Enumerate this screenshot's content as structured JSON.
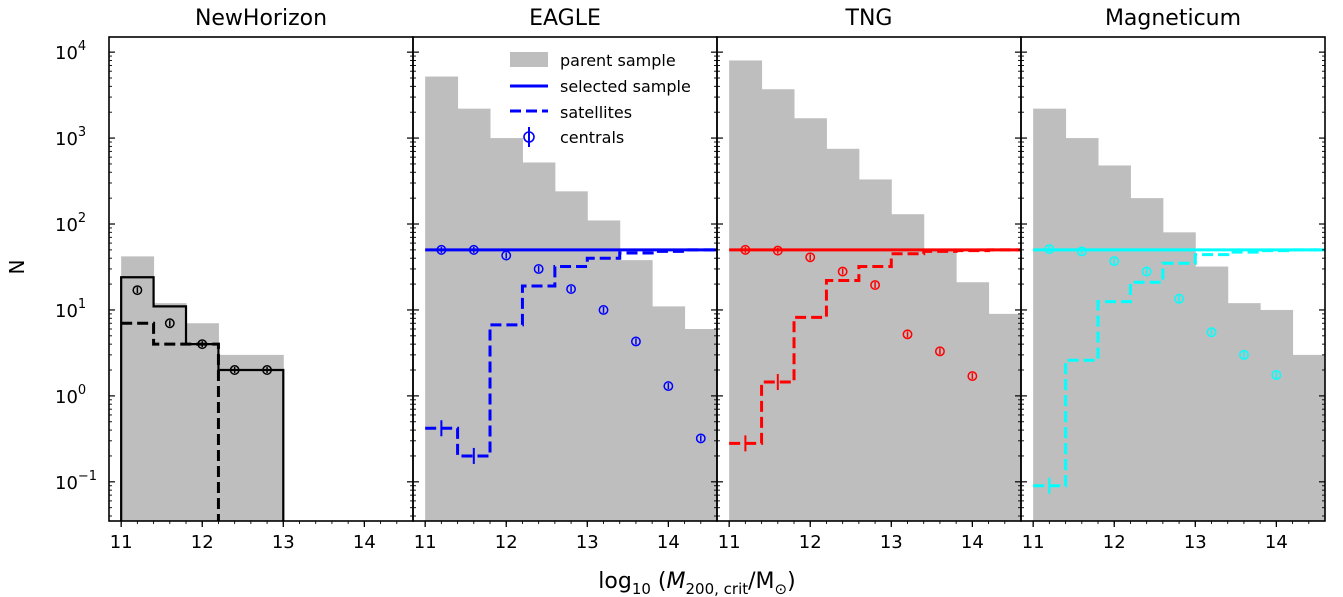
{
  "figure": {
    "ylabel": "N",
    "xlabel_prefix": "log",
    "xlabel_sub": "10",
    "xlabel_open": " (",
    "xlabel_M": "M",
    "xlabel_M_sub": "200, crit",
    "xlabel_slash": "/M",
    "xlabel_sun": "⊙",
    "xlabel_close": ")",
    "x_ticks": [
      "11",
      "12",
      "13",
      "14"
    ],
    "y_tick_exponents": [
      "4",
      "3",
      "2",
      "1",
      "0",
      "−1"
    ],
    "y_tick_base": "10"
  },
  "legend": {
    "items": [
      {
        "label": "parent sample",
        "style": "patch"
      },
      {
        "label": "selected sample",
        "style": "solid"
      },
      {
        "label": "satellites",
        "style": "dashed"
      },
      {
        "label": "centrals",
        "style": "marker"
      }
    ]
  },
  "chart_data": [
    {
      "type": "bar",
      "title": "NewHorizon",
      "color": "#000000",
      "xlim": [
        10.85,
        14.6
      ],
      "ylim": [
        0.035,
        15000
      ],
      "yscale": "log",
      "bin_edges": [
        11.0,
        11.4,
        11.8,
        12.2,
        12.6,
        13.0,
        13.4,
        13.8,
        14.2,
        14.6
      ],
      "parent_sample": [
        42,
        12,
        7,
        3,
        3,
        0,
        0,
        0,
        0
      ],
      "selected_sample": [
        24,
        11,
        4,
        2,
        2,
        0,
        0,
        0,
        0
      ],
      "satellites": [
        7,
        4,
        4,
        0,
        0,
        0,
        0,
        0,
        0
      ],
      "centrals": {
        "x": [
          11.2,
          11.6,
          12.0,
          12.4,
          12.8
        ],
        "y": [
          17,
          7,
          4,
          2,
          2
        ]
      },
      "satellite_errorbars": [],
      "grid": false
    },
    {
      "type": "bar",
      "title": "EAGLE",
      "color": "#0000ff",
      "xlim": [
        10.85,
        14.6
      ],
      "ylim": [
        0.035,
        15000
      ],
      "yscale": "log",
      "bin_edges": [
        11.0,
        11.4,
        11.8,
        12.2,
        12.6,
        13.0,
        13.4,
        13.8,
        14.2,
        14.6
      ],
      "parent_sample": [
        5200,
        2200,
        1000,
        520,
        240,
        110,
        38,
        11,
        6
      ],
      "selected_sample_level": 50,
      "satellites": [
        0.42,
        0.2,
        6.7,
        19,
        32,
        40,
        46,
        48,
        50
      ],
      "centrals": {
        "x": [
          11.2,
          11.6,
          12.0,
          12.4,
          12.8,
          13.2,
          13.6,
          14.0,
          14.4
        ],
        "y": [
          50,
          50,
          43,
          30,
          17.5,
          10,
          4.3,
          1.3,
          0.32
        ]
      },
      "satellite_errorbars": [
        {
          "x": 11.2,
          "y": 0.42
        },
        {
          "x": 11.6,
          "y": 0.2
        }
      ],
      "legend": "top-center",
      "grid": false
    },
    {
      "type": "bar",
      "title": "TNG",
      "color": "#ff0000",
      "xlim": [
        10.85,
        14.6
      ],
      "ylim": [
        0.035,
        15000
      ],
      "yscale": "log",
      "bin_edges": [
        11.0,
        11.4,
        11.8,
        12.2,
        12.6,
        13.0,
        13.4,
        13.8,
        14.2,
        14.6
      ],
      "parent_sample": [
        8000,
        3700,
        1700,
        750,
        330,
        130,
        50,
        21,
        9
      ],
      "selected_sample_level": 50,
      "satellites": [
        0.28,
        1.45,
        8.2,
        22,
        32,
        45,
        48,
        49,
        50
      ],
      "centrals": {
        "x": [
          11.2,
          11.6,
          12.0,
          12.4,
          12.8,
          13.2,
          13.6,
          14.0
        ],
        "y": [
          50,
          49,
          41,
          28,
          19.5,
          5.2,
          3.3,
          1.7
        ]
      },
      "satellite_errorbars": [
        {
          "x": 11.2,
          "y": 0.28
        },
        {
          "x": 11.6,
          "y": 1.45
        }
      ],
      "grid": false
    },
    {
      "type": "bar",
      "title": "Magneticum",
      "color": "#00ffff",
      "xlim": [
        10.85,
        14.6
      ],
      "ylim": [
        0.035,
        15000
      ],
      "yscale": "log",
      "bin_edges": [
        11.0,
        11.4,
        11.8,
        12.2,
        12.6,
        13.0,
        13.4,
        13.8,
        14.2,
        14.6
      ],
      "parent_sample": [
        2200,
        1000,
        480,
        200,
        80,
        32,
        12,
        10,
        3
      ],
      "selected_sample_level": 50,
      "satellites": [
        0.09,
        2.6,
        12.5,
        21,
        35,
        44,
        47,
        49,
        50
      ],
      "centrals": {
        "x": [
          11.2,
          11.6,
          12.0,
          12.4,
          12.8,
          13.2,
          13.6,
          14.0
        ],
        "y": [
          51,
          48,
          37,
          28,
          13.5,
          5.5,
          3.0,
          1.75
        ]
      },
      "satellite_errorbars": [
        {
          "x": 11.2,
          "y": 0.09
        }
      ],
      "grid": false
    }
  ]
}
